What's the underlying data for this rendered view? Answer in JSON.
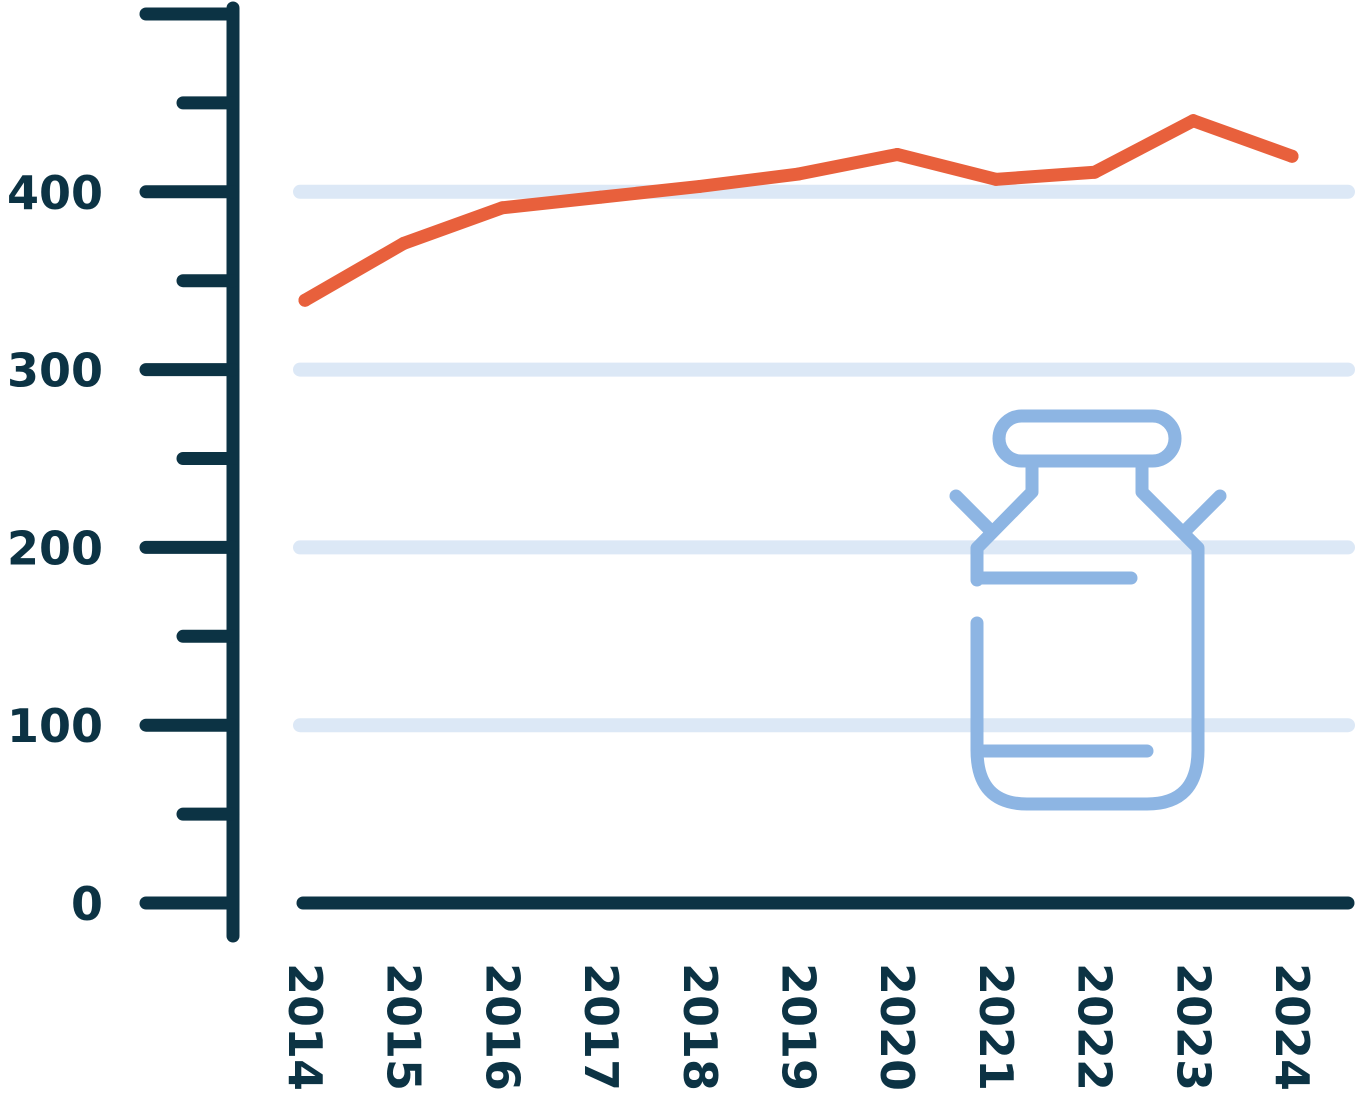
{
  "chart_data": {
    "type": "line",
    "title": "",
    "xlabel": "",
    "ylabel": "",
    "x": [
      "2014",
      "2015",
      "2016",
      "2017",
      "2018",
      "2019",
      "2020",
      "2021",
      "2022",
      "2023",
      "2024"
    ],
    "series": [
      {
        "values": [
          339,
          371,
          391,
          397,
          403,
          410,
          421,
          407,
          411,
          440,
          420
        ]
      }
    ],
    "ylim": [
      0,
      500
    ],
    "yticks": [
      "0",
      "100",
      "200",
      "300",
      "400"
    ],
    "grid": true,
    "legend": "none",
    "colors": {
      "line": "#e8603c",
      "axis": "#0c3344",
      "grid": "#dce8f6",
      "icon": "#8db5e3"
    },
    "icon": "milk-can-icon"
  }
}
